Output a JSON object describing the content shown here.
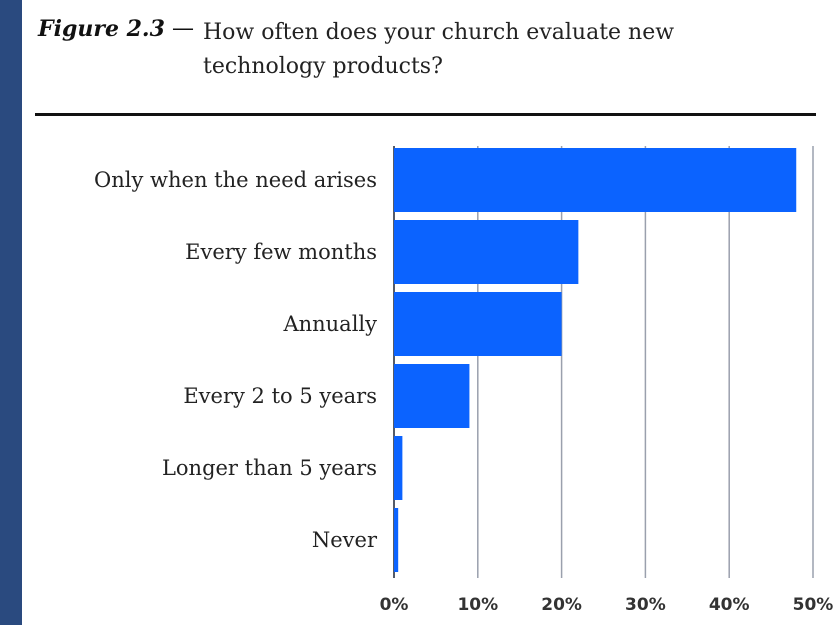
{
  "figure": {
    "label": "Figure 2.3",
    "dash": "—",
    "title_line1": "How often does your church evaluate new",
    "title_line2": "technology products?"
  },
  "colors": {
    "bar": "#0b63ff",
    "background": "#2a4a7f",
    "grid": "#9aa0ad",
    "rule": "#111111"
  },
  "chart_data": {
    "type": "bar",
    "orientation": "horizontal",
    "title": "How often does your church evaluate new technology products?",
    "categories": [
      "Only when the need arises",
      "Every few months",
      "Annually",
      "Every 2 to 5 years",
      "Longer than 5 years",
      "Never"
    ],
    "values": [
      48,
      22,
      20,
      9,
      1,
      0.5
    ],
    "xlim": [
      0,
      50
    ],
    "ticks": [
      "0%",
      "10%",
      "20%",
      "30%",
      "40%",
      "50%"
    ],
    "tick_values": [
      0,
      10,
      20,
      30,
      40,
      50
    ],
    "grid": true
  }
}
